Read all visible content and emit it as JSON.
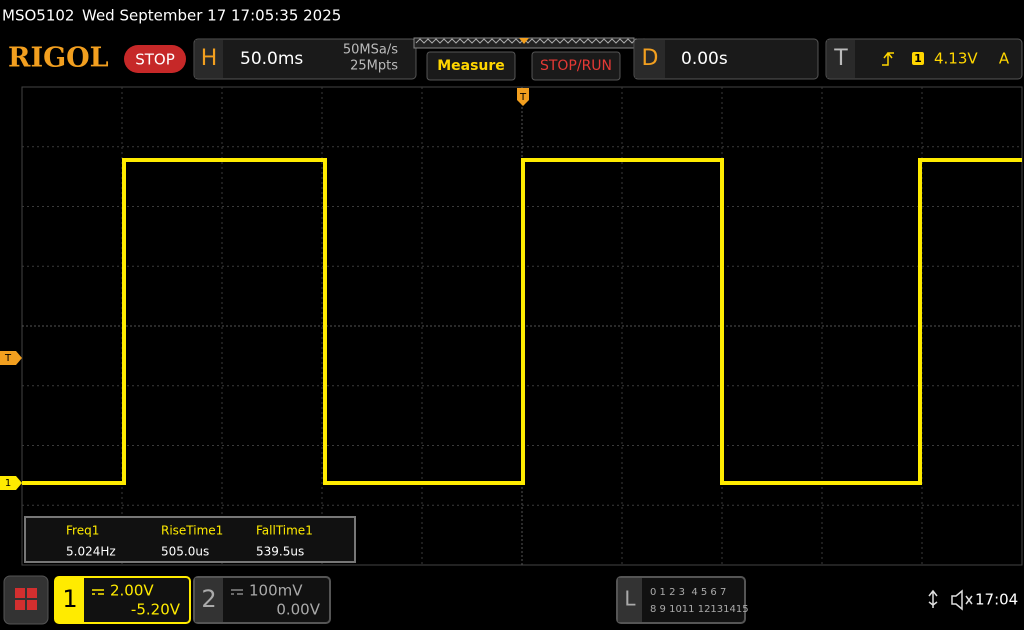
{
  "status_bar": {
    "model": "MSO5102",
    "datetime": "Wed September 17 17:05:35 2025"
  },
  "toolbar": {
    "logo": "RIGOL",
    "run_state": "STOP",
    "horizontal": {
      "label": "H",
      "timebase": "50.0ms",
      "sample_rate": "50MSa/s",
      "memory_depth": "25Mpts"
    },
    "measure_button": "Measure",
    "stop_run_button": "STOP/RUN",
    "delay": {
      "label": "D",
      "value": "0.00s"
    },
    "trigger": {
      "label": "T",
      "source": "1",
      "level": "4.13V",
      "mode": "A"
    }
  },
  "markers": {
    "trigger_top": "T",
    "trigger_level": "T",
    "channel": "1"
  },
  "measurements": [
    {
      "name": "Freq1",
      "value": "5.024Hz"
    },
    {
      "name": "RiseTime1",
      "value": "505.0us"
    },
    {
      "name": "FallTime1",
      "value": "539.5us"
    }
  ],
  "channels": [
    {
      "number": "1",
      "scale": "2.00V",
      "offset": "-5.20V"
    },
    {
      "number": "2",
      "scale": "100mV",
      "offset": "0.00V"
    }
  ],
  "logic": {
    "label": "L",
    "bits_top": "0 1 2 3  4 5 6 7",
    "bits_bottom": "8 9 1011 12131415"
  },
  "clock": "17:04"
}
